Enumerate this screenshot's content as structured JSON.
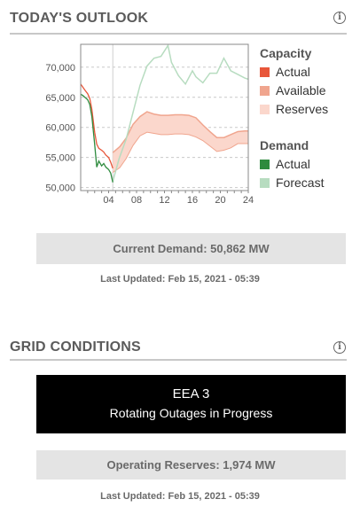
{
  "outlook": {
    "title": "TODAY'S OUTLOOK",
    "current_demand": "Current Demand: 50,862 MW",
    "last_updated": "Last Updated: Feb 15, 2021 - 05:39"
  },
  "grid": {
    "title": "GRID CONDITIONS",
    "alert_level": "EEA 3",
    "alert_message": "Rotating Outages in Progress",
    "operating_reserves": "Operating Reserves: 1,974 MW",
    "last_updated": "Last Updated: Feb 15, 2021 - 05:39"
  },
  "info_icon": "info-icon",
  "colors": {
    "capacity_actual": "#e8563a",
    "capacity_available": "#f0a58e",
    "capacity_reserves": "#fbd7cc",
    "demand_actual": "#2e8b3e",
    "demand_forecast": "#b7dcc0"
  },
  "chart_data": {
    "type": "line",
    "x_ticks": [
      "04",
      "08",
      "12",
      "16",
      "20",
      "24"
    ],
    "y_ticks": [
      "50,000",
      "55,000",
      "60,000",
      "65,000",
      "70,000"
    ],
    "xlim": [
      0,
      24
    ],
    "ylim": [
      49500,
      73800
    ],
    "legend": {
      "capacity_title": "Capacity",
      "capacity_items": [
        "Actual",
        "Available",
        "Reserves"
      ],
      "demand_title": "Demand",
      "demand_items": [
        "Actual",
        "Forecast"
      ]
    },
    "series": {
      "capacity_actual_x": [
        0.0,
        0.3,
        0.6,
        1.0,
        1.3,
        1.6,
        2.0,
        2.3,
        2.6,
        3.0,
        3.3,
        3.6,
        4.0,
        4.3,
        4.6
      ],
      "capacity_actual_y": [
        67200,
        66700,
        66200,
        65600,
        64800,
        63000,
        59200,
        57200,
        56500,
        56200,
        55900,
        55400,
        55000,
        54200,
        53200
      ],
      "demand_actual_x": [
        0.0,
        0.3,
        0.6,
        1.0,
        1.3,
        1.6,
        2.0,
        2.3,
        2.6,
        3.0,
        3.3,
        3.6,
        4.0,
        4.3,
        4.6
      ],
      "demand_actual_y": [
        65500,
        65300,
        65000,
        64600,
        63800,
        61800,
        57200,
        53400,
        54400,
        53600,
        54000,
        53400,
        53000,
        52400,
        50862
      ],
      "available_x": [
        4.6,
        5.6,
        6.5,
        7.5,
        8.5,
        9.5,
        10.5,
        11.5,
        12.5,
        13.5,
        14.5,
        15.5,
        16.5,
        17.5,
        18.5,
        19.5,
        20.5,
        21.5,
        22.5,
        23.5,
        24.0
      ],
      "available_y": [
        55800,
        56800,
        58200,
        60500,
        61800,
        62600,
        62200,
        62000,
        62000,
        62100,
        62100,
        62000,
        61600,
        60400,
        59300,
        58300,
        58300,
        58800,
        59300,
        59400,
        59400
      ],
      "reserves_y": [
        52500,
        53300,
        54800,
        57000,
        58600,
        59200,
        59000,
        58800,
        58800,
        58900,
        58900,
        58800,
        58400,
        57800,
        56900,
        56000,
        56200,
        56600,
        57300,
        57300,
        57300
      ],
      "forecast_x": [
        4.6,
        5.5,
        6.5,
        7.5,
        8.5,
        9.5,
        10.5,
        11.5,
        12.5,
        13.0,
        14.0,
        15.0,
        16.0,
        16.5,
        17.5,
        18.5,
        19.5,
        20.5,
        21.5,
        22.5,
        23.5,
        24.0
      ],
      "forecast_y": [
        51000,
        54800,
        58000,
        62500,
        67000,
        70200,
        71500,
        71800,
        73600,
        70800,
        68600,
        67200,
        69400,
        68400,
        67400,
        69000,
        69000,
        71500,
        69400,
        68800,
        68200,
        68000
      ]
    }
  }
}
